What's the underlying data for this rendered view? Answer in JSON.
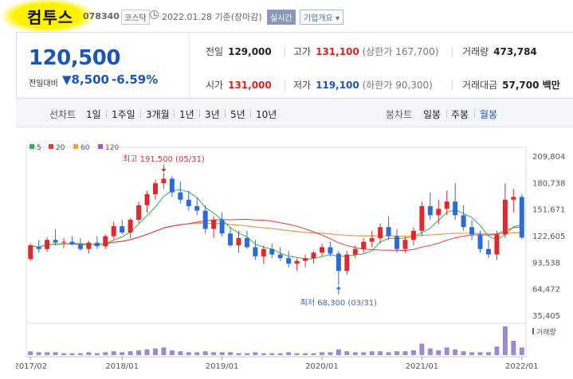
{
  "header": {
    "name": "컴투스",
    "code": "078340",
    "market": "코스닥",
    "date": "2022.01.28",
    "basis": "기준(장마감)",
    "realtime_label": "실시간",
    "company_info_label": "기업개요"
  },
  "summary": {
    "price": "120,500",
    "change_label": "전일대비",
    "change_value": "▼8,500",
    "change_pct": "-6.59%",
    "prev_close_label": "전일",
    "prev_close": "129,000",
    "high_label": "고가",
    "high": "131,100",
    "upper_limit": "(상한가 167,700)",
    "volume_label": "거래량",
    "volume": "473,784",
    "open_label": "시가",
    "open": "131,000",
    "low_label": "저가",
    "low": "119,100",
    "lower_limit": "(하한가 90,300)",
    "amount_label": "거래대금",
    "amount": "57,700 백만"
  },
  "periods": {
    "line_label": "선차트",
    "items": [
      "1일",
      "1주일",
      "3개월",
      "1년",
      "3년",
      "5년",
      "10년"
    ],
    "candle_label": "봉차트",
    "candles": [
      "일봉",
      "주봉",
      "월봉"
    ],
    "active_candle": "월봉"
  },
  "colors": {
    "up": "#e0282d",
    "down": "#2e6bd6",
    "ma5": "#2db34a",
    "ma20": "#e8383c",
    "ma60": "#f2a13a",
    "ma120": "#9b59d0",
    "volume": "#9b8ad0"
  },
  "chart_data": {
    "type": "candlestick",
    "legend": [
      {
        "name": "5",
        "color": "#2db34a"
      },
      {
        "name": "20",
        "color": "#e8383c"
      },
      {
        "name": "60",
        "color": "#f2a13a"
      },
      {
        "name": "120",
        "color": "#9b59d0"
      }
    ],
    "y_ticks": [
      "209,804",
      "180,738",
      "151,671",
      "122,605",
      "93,538",
      "64,472",
      "35,405"
    ],
    "ylim": [
      35405,
      209804
    ],
    "x_ticks": [
      "2017/02",
      "2018/01",
      "2019/01",
      "2020/01",
      "2021/01",
      "2022/01"
    ],
    "annotations": [
      {
        "label": "최고 191,500 (05/31)",
        "value": 191500,
        "index": 16
      },
      {
        "label": "최저 68,300 (03/31)",
        "value": 68300,
        "index": 37
      }
    ],
    "volume_label": "거래량",
    "candles": [
      [
        97000,
        114000,
        95000,
        112000
      ],
      [
        110000,
        118000,
        104000,
        108000
      ],
      [
        108000,
        121000,
        105000,
        118000
      ],
      [
        118000,
        130000,
        112000,
        115000
      ],
      [
        115000,
        120000,
        109000,
        116000
      ],
      [
        116000,
        122000,
        112000,
        113000
      ],
      [
        113000,
        120000,
        106000,
        108000
      ],
      [
        108000,
        117000,
        103000,
        115000
      ],
      [
        115000,
        122000,
        108000,
        111000
      ],
      [
        111000,
        124000,
        108000,
        122000
      ],
      [
        122000,
        138000,
        119000,
        133000
      ],
      [
        133000,
        140000,
        124000,
        126000
      ],
      [
        126000,
        142000,
        120000,
        140000
      ],
      [
        140000,
        160000,
        136000,
        156000
      ],
      [
        156000,
        172000,
        148000,
        168000
      ],
      [
        168000,
        184000,
        162000,
        180000
      ],
      [
        180000,
        191500,
        174000,
        185000
      ],
      [
        185000,
        188000,
        165000,
        170000
      ],
      [
        170000,
        182000,
        158000,
        162000
      ],
      [
        162000,
        172000,
        150000,
        155000
      ],
      [
        155000,
        165000,
        145000,
        150000
      ],
      [
        150000,
        156000,
        125000,
        130000
      ],
      [
        130000,
        144000,
        120000,
        140000
      ],
      [
        140000,
        148000,
        122000,
        125000
      ],
      [
        125000,
        132000,
        110000,
        112000
      ],
      [
        112000,
        128000,
        104000,
        120000
      ],
      [
        120000,
        128000,
        108000,
        110000
      ],
      [
        110000,
        118000,
        96000,
        100000
      ],
      [
        100000,
        112000,
        92000,
        108000
      ],
      [
        108000,
        114000,
        98000,
        102000
      ],
      [
        102000,
        110000,
        95000,
        98000
      ],
      [
        98000,
        106000,
        88000,
        92000
      ],
      [
        92000,
        98000,
        84000,
        95000
      ],
      [
        95000,
        102000,
        88000,
        98000
      ],
      [
        98000,
        106000,
        92000,
        104000
      ],
      [
        104000,
        114000,
        100000,
        110000
      ],
      [
        110000,
        116000,
        100000,
        103000
      ],
      [
        103000,
        106000,
        68300,
        84000
      ],
      [
        84000,
        106000,
        80000,
        102000
      ],
      [
        102000,
        112000,
        98000,
        108000
      ],
      [
        108000,
        120000,
        104000,
        116000
      ],
      [
        116000,
        128000,
        110000,
        120000
      ],
      [
        120000,
        136000,
        114000,
        132000
      ],
      [
        132000,
        144000,
        118000,
        122000
      ],
      [
        122000,
        130000,
        104000,
        108000
      ],
      [
        108000,
        122000,
        104000,
        118000
      ],
      [
        118000,
        132000,
        112000,
        128000
      ],
      [
        128000,
        160000,
        122000,
        155000
      ],
      [
        155000,
        170000,
        140000,
        145000
      ],
      [
        145000,
        162000,
        135000,
        152000
      ],
      [
        152000,
        172000,
        145000,
        160000
      ],
      [
        160000,
        180000,
        140000,
        145000
      ],
      [
        145000,
        156000,
        128000,
        132000
      ],
      [
        132000,
        140000,
        118000,
        124000
      ],
      [
        124000,
        128000,
        104000,
        108000
      ],
      [
        108000,
        118000,
        98000,
        102000
      ],
      [
        102000,
        128000,
        96000,
        124000
      ],
      [
        124000,
        180000,
        120000,
        162000
      ],
      [
        162000,
        174000,
        148000,
        165000
      ],
      [
        165000,
        168000,
        119100,
        120500
      ]
    ],
    "volumes": [
      4,
      3,
      3,
      3,
      2,
      2,
      2,
      3,
      2,
      3,
      4,
      3,
      4,
      5,
      6,
      7,
      8,
      5,
      4,
      3,
      3,
      4,
      3,
      3,
      3,
      2,
      2,
      3,
      2,
      2,
      2,
      3,
      2,
      2,
      2,
      3,
      3,
      6,
      4,
      3,
      3,
      4,
      4,
      3,
      4,
      4,
      5,
      12,
      7,
      5,
      8,
      6,
      4,
      3,
      3,
      3,
      9,
      30,
      15,
      8
    ]
  }
}
